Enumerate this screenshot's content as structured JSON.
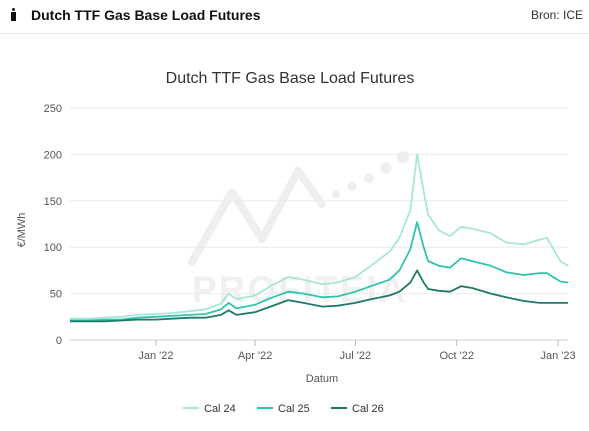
{
  "header": {
    "icon": "info-icon",
    "title": "Dutch TTF Gas Base Load Futures",
    "source": "Bron: ICE"
  },
  "chart_data": {
    "type": "line",
    "title": "Dutch TTF Gas Base Load Futures",
    "xlabel": "Datum",
    "ylabel": "€/MWh",
    "ylim": [
      0,
      250
    ],
    "yticks": [
      0,
      50,
      100,
      150,
      200,
      250
    ],
    "xlim": [
      "2021-10-15",
      "2023-01-10"
    ],
    "xticks": [
      {
        "date": "2022-01-01",
        "label": "Jan '22"
      },
      {
        "date": "2022-04-01",
        "label": "Apr '22"
      },
      {
        "date": "2022-07-01",
        "label": "Jul '22"
      },
      {
        "date": "2022-10-01",
        "label": "Oct '22"
      },
      {
        "date": "2023-01-01",
        "label": "Jan '23"
      }
    ],
    "grid": "horizontal",
    "legend": "bottom-center",
    "series": [
      {
        "name": "Cal 24",
        "color": "#a8e6d7",
        "points": [
          [
            "2021-10-15",
            23
          ],
          [
            "2021-11-01",
            23
          ],
          [
            "2021-11-15",
            24
          ],
          [
            "2021-12-01",
            25
          ],
          [
            "2021-12-15",
            27
          ],
          [
            "2022-01-01",
            28
          ],
          [
            "2022-01-15",
            29
          ],
          [
            "2022-02-01",
            31
          ],
          [
            "2022-02-15",
            33
          ],
          [
            "2022-03-01",
            39
          ],
          [
            "2022-03-08",
            50
          ],
          [
            "2022-03-15",
            44
          ],
          [
            "2022-04-01",
            48
          ],
          [
            "2022-04-15",
            58
          ],
          [
            "2022-05-01",
            68
          ],
          [
            "2022-05-15",
            65
          ],
          [
            "2022-06-01",
            60
          ],
          [
            "2022-06-15",
            62
          ],
          [
            "2022-07-01",
            68
          ],
          [
            "2022-07-15",
            80
          ],
          [
            "2022-08-01",
            95
          ],
          [
            "2022-08-10",
            110
          ],
          [
            "2022-08-20",
            140
          ],
          [
            "2022-08-26",
            200
          ],
          [
            "2022-09-01",
            160
          ],
          [
            "2022-09-05",
            135
          ],
          [
            "2022-09-15",
            118
          ],
          [
            "2022-09-25",
            112
          ],
          [
            "2022-10-05",
            122
          ],
          [
            "2022-10-15",
            120
          ],
          [
            "2022-11-01",
            115
          ],
          [
            "2022-11-15",
            105
          ],
          [
            "2022-12-01",
            103
          ],
          [
            "2022-12-15",
            108
          ],
          [
            "2022-12-22",
            110
          ],
          [
            "2023-01-03",
            85
          ],
          [
            "2023-01-10",
            80
          ]
        ]
      },
      {
        "name": "Cal 25",
        "color": "#2fc4ad",
        "points": [
          [
            "2021-10-15",
            21
          ],
          [
            "2021-11-01",
            21
          ],
          [
            "2021-11-15",
            22
          ],
          [
            "2021-12-01",
            22
          ],
          [
            "2021-12-15",
            24
          ],
          [
            "2022-01-01",
            25
          ],
          [
            "2022-01-15",
            26
          ],
          [
            "2022-02-01",
            27
          ],
          [
            "2022-02-15",
            28
          ],
          [
            "2022-03-01",
            33
          ],
          [
            "2022-03-08",
            40
          ],
          [
            "2022-03-15",
            34
          ],
          [
            "2022-04-01",
            38
          ],
          [
            "2022-04-15",
            45
          ],
          [
            "2022-05-01",
            52
          ],
          [
            "2022-05-15",
            50
          ],
          [
            "2022-06-01",
            46
          ],
          [
            "2022-06-15",
            47
          ],
          [
            "2022-07-01",
            52
          ],
          [
            "2022-07-15",
            58
          ],
          [
            "2022-08-01",
            65
          ],
          [
            "2022-08-10",
            75
          ],
          [
            "2022-08-20",
            98
          ],
          [
            "2022-08-26",
            127
          ],
          [
            "2022-09-01",
            100
          ],
          [
            "2022-09-05",
            85
          ],
          [
            "2022-09-15",
            80
          ],
          [
            "2022-09-25",
            78
          ],
          [
            "2022-10-05",
            88
          ],
          [
            "2022-10-15",
            85
          ],
          [
            "2022-11-01",
            80
          ],
          [
            "2022-11-15",
            73
          ],
          [
            "2022-12-01",
            70
          ],
          [
            "2022-12-15",
            72
          ],
          [
            "2022-12-22",
            72
          ],
          [
            "2023-01-03",
            63
          ],
          [
            "2023-01-10",
            62
          ]
        ]
      },
      {
        "name": "Cal 26",
        "color": "#1f7a6a",
        "points": [
          [
            "2021-10-15",
            20
          ],
          [
            "2021-11-01",
            20
          ],
          [
            "2021-11-15",
            20
          ],
          [
            "2021-12-01",
            21
          ],
          [
            "2021-12-15",
            22
          ],
          [
            "2022-01-01",
            22
          ],
          [
            "2022-01-15",
            23
          ],
          [
            "2022-02-01",
            24
          ],
          [
            "2022-02-15",
            24
          ],
          [
            "2022-03-01",
            27
          ],
          [
            "2022-03-08",
            32
          ],
          [
            "2022-03-15",
            27
          ],
          [
            "2022-04-01",
            30
          ],
          [
            "2022-04-15",
            36
          ],
          [
            "2022-05-01",
            43
          ],
          [
            "2022-05-15",
            40
          ],
          [
            "2022-06-01",
            36
          ],
          [
            "2022-06-15",
            37
          ],
          [
            "2022-07-01",
            40
          ],
          [
            "2022-07-15",
            44
          ],
          [
            "2022-08-01",
            48
          ],
          [
            "2022-08-10",
            52
          ],
          [
            "2022-08-20",
            62
          ],
          [
            "2022-08-26",
            75
          ],
          [
            "2022-09-01",
            62
          ],
          [
            "2022-09-05",
            55
          ],
          [
            "2022-09-15",
            53
          ],
          [
            "2022-09-25",
            52
          ],
          [
            "2022-10-05",
            58
          ],
          [
            "2022-10-15",
            56
          ],
          [
            "2022-11-01",
            50
          ],
          [
            "2022-11-15",
            46
          ],
          [
            "2022-12-01",
            42
          ],
          [
            "2022-12-15",
            40
          ],
          [
            "2022-12-22",
            40
          ],
          [
            "2023-01-03",
            40
          ],
          [
            "2023-01-10",
            40
          ]
        ]
      }
    ]
  },
  "watermark": "PROFITEIA"
}
